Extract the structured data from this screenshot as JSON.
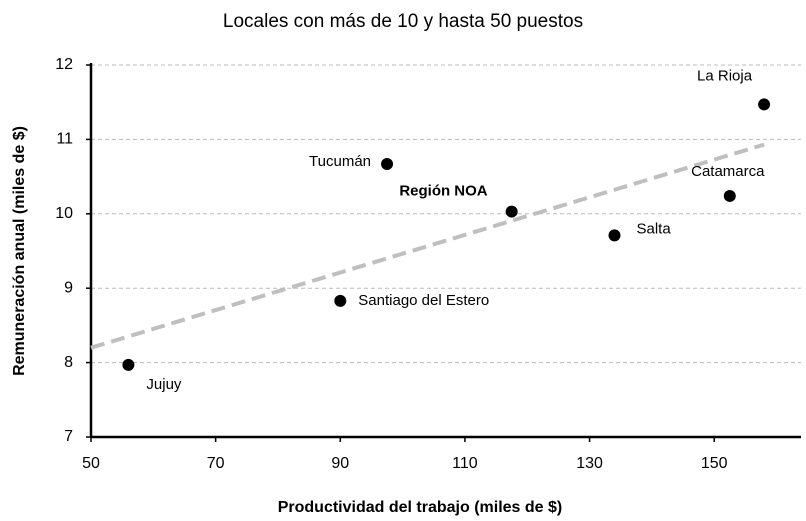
{
  "chart_data": {
    "type": "scatter",
    "title": "Locales con más de 10 y hasta 50 puestos",
    "x_label": "Productividad del trabajo (miles de $)",
    "y_label": "Remuneración anual (miles de $)",
    "labels": [
      "Jujuy",
      "Santiago del Estero",
      "Tucumán",
      "Región NOA",
      "Salta",
      "Catamarca",
      "La Rioja"
    ],
    "x": [
      56,
      90,
      97.5,
      117.5,
      134,
      152.5,
      158
    ],
    "values": [
      7.97,
      8.83,
      10.67,
      10.03,
      9.71,
      10.24,
      11.47
    ],
    "color": "#000000",
    "trendline": {
      "x": [
        50,
        158
      ],
      "values": [
        8.2,
        10.93
      ],
      "color": "#bfbfbf"
    },
    "xlim": [
      50,
      162
    ],
    "xticks": [
      50,
      70,
      90,
      110,
      130,
      150
    ],
    "ylim": [
      7,
      12
    ],
    "yticks": [
      7,
      8,
      9,
      10,
      11,
      12
    ],
    "grid": true
  }
}
